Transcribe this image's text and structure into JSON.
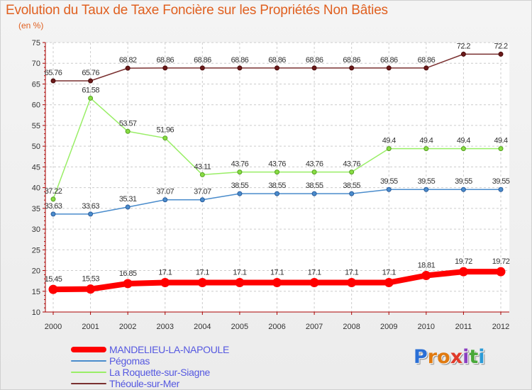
{
  "header": {
    "title": "Evolution du Taux de Taxe Foncière sur les Propriétés Non Bâties",
    "unit": "(en %)"
  },
  "chart_data": {
    "type": "line",
    "title": "Evolution du Taux de Taxe Foncière sur les Propriétés Non Bâties",
    "ylabel": "(en %)",
    "xlabel": "",
    "x": [
      "2000",
      "2001",
      "2002",
      "2003",
      "2004",
      "2005",
      "2006",
      "2007",
      "2008",
      "2009",
      "2010",
      "2011",
      "2012"
    ],
    "ylim": [
      10,
      75
    ],
    "yticks": [
      10,
      15,
      20,
      25,
      30,
      35,
      40,
      45,
      50,
      55,
      60,
      65,
      70,
      75
    ],
    "grid": true,
    "legend_position": "bottom-left",
    "series": [
      {
        "name": "MANDELIEU-LA-NAPOULE",
        "color": "#ff0000",
        "values": [
          15.45,
          15.53,
          16.85,
          17.1,
          17.1,
          17.1,
          17.1,
          17.1,
          17.1,
          17.1,
          18.81,
          19.72,
          19.72
        ],
        "labels": [
          "15.45",
          "15.53",
          "16.85",
          "17.1",
          "17.1",
          "17.1",
          "17.1",
          "17.1",
          "17.1",
          "17.1",
          "18.81",
          "19.72",
          "19.72"
        ]
      },
      {
        "name": "Pégomas",
        "color": "#4a8ccc",
        "values": [
          33.63,
          33.63,
          35.31,
          37.07,
          37.07,
          38.55,
          38.55,
          38.55,
          38.55,
          39.55,
          39.55,
          39.55,
          39.55
        ],
        "labels": [
          "33.63",
          "33.63",
          "35.31",
          "37.07",
          "37.07",
          "38.55",
          "38.55",
          "38.55",
          "38.55",
          "39.55",
          "39.55",
          "39.55",
          "39.55"
        ]
      },
      {
        "name": "La Roquette-sur-Siagne",
        "color": "#88dd44",
        "values": [
          37.22,
          61.58,
          53.57,
          51.96,
          43.11,
          43.76,
          43.76,
          43.76,
          43.76,
          49.4,
          49.4,
          49.4,
          49.4
        ],
        "labels": [
          "37.22",
          "61.58",
          "53.57",
          "51.96",
          "43.11",
          "43.76",
          "43.76",
          "43.76",
          "43.76",
          "49.4",
          "49.4",
          "49.4",
          "49.4"
        ]
      },
      {
        "name": "Théoule-sur-Mer",
        "color": "#6b2b2b",
        "values": [
          65.76,
          65.76,
          68.82,
          68.86,
          68.86,
          68.86,
          68.86,
          68.86,
          68.86,
          68.86,
          68.86,
          72.2,
          72.2
        ],
        "labels": [
          "65.76",
          "65.76",
          "68.82",
          "68.86",
          "68.86",
          "68.86",
          "68.86",
          "68.86",
          "68.86",
          "68.86",
          "68.86",
          "72.2",
          "72.2"
        ]
      }
    ]
  },
  "logo": {
    "letters": [
      "P",
      "r",
      "o",
      "x",
      "i",
      "t",
      "i"
    ],
    "colors": [
      "#2a6fd6",
      "#e07a10",
      "#e07a10",
      "#e03a2a",
      "#8a3fc0",
      "#48a838",
      "#2a9ad6"
    ]
  }
}
